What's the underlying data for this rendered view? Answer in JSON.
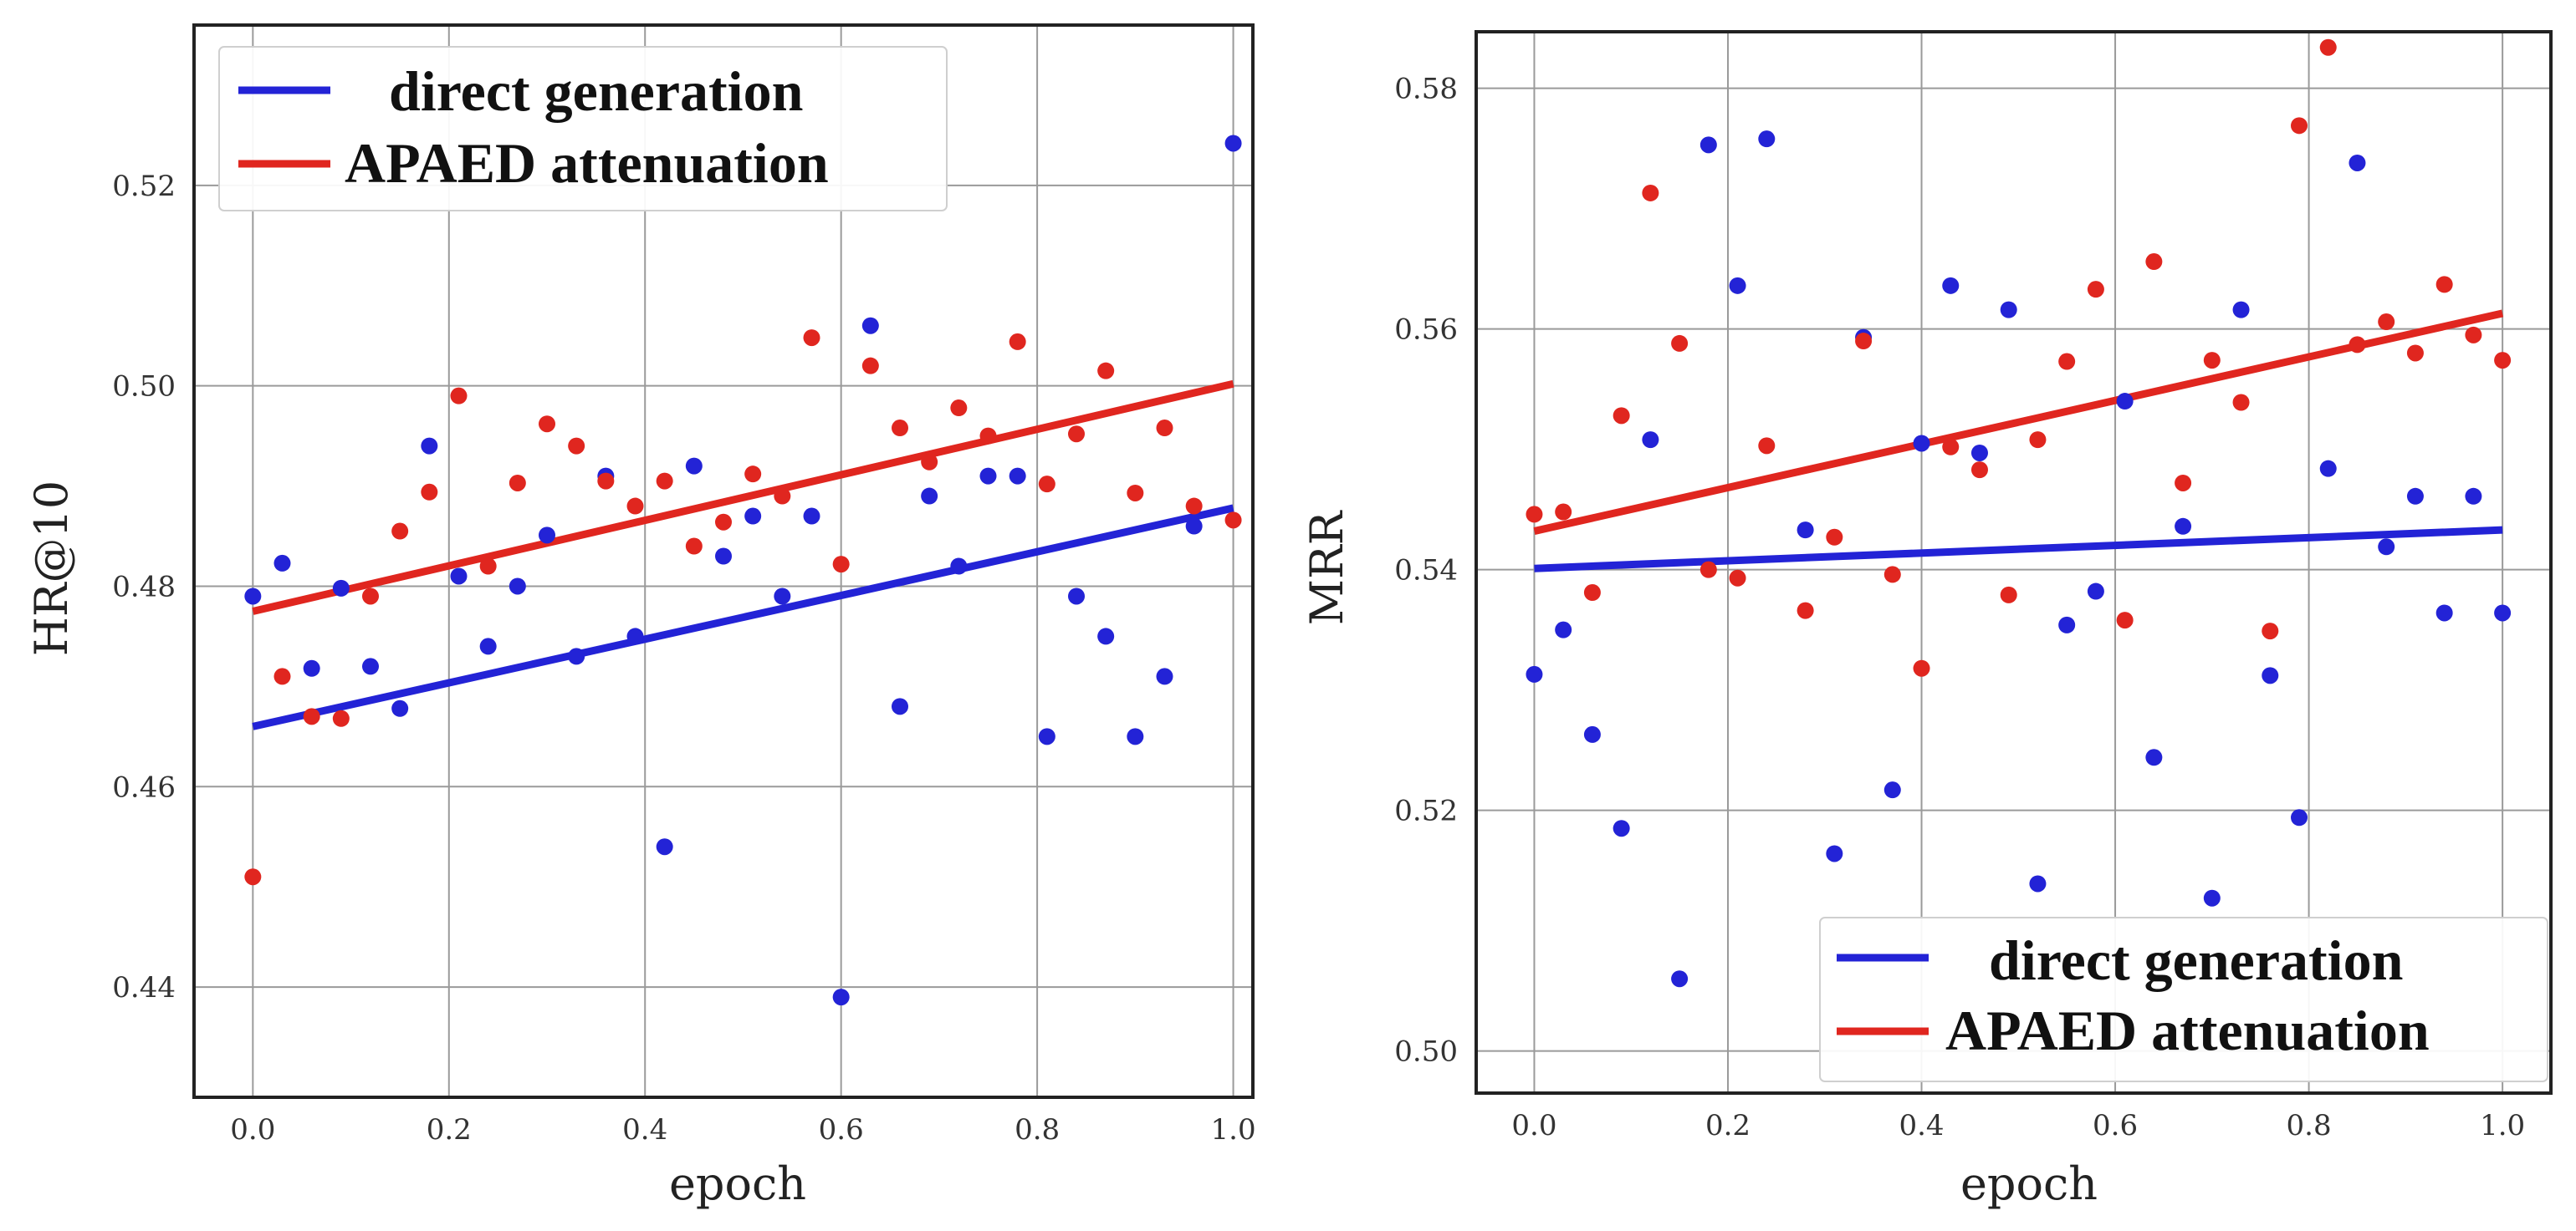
{
  "chart_data": [
    {
      "type": "scatter",
      "xlabel": "epoch",
      "ylabel": "HR@10",
      "xlim": [
        -0.06,
        1.02
      ],
      "ylim": [
        0.429,
        0.536
      ],
      "xticks": [
        0.0,
        0.2,
        0.4,
        0.6,
        0.8,
        1.0
      ],
      "xtick_labels": [
        "0.0",
        "0.2",
        "0.4",
        "0.6",
        "0.8",
        "1.0"
      ],
      "yticks": [
        0.44,
        0.46,
        0.48,
        0.5,
        0.52
      ],
      "ytick_labels": [
        "0.44",
        "0.46",
        "0.48",
        "0.50",
        "0.52"
      ],
      "grid": true,
      "legend_position": "top-left",
      "series": [
        {
          "name": "direct generation",
          "color": "#2323d6",
          "x": [
            0.0,
            0.03,
            0.06,
            0.09,
            0.12,
            0.15,
            0.18,
            0.21,
            0.24,
            0.27,
            0.3,
            0.33,
            0.36,
            0.39,
            0.42,
            0.45,
            0.48,
            0.51,
            0.54,
            0.57,
            0.6,
            0.63,
            0.66,
            0.69,
            0.72,
            0.75,
            0.78,
            0.81,
            0.84,
            0.87,
            0.9,
            0.93,
            0.96,
            1.0
          ],
          "y": [
            0.479,
            0.4823,
            0.4718,
            0.4798,
            0.472,
            0.4678,
            0.494,
            0.481,
            0.474,
            0.48,
            0.4851,
            0.473,
            0.491,
            0.475,
            0.454,
            0.492,
            0.483,
            0.487,
            0.479,
            0.487,
            0.439,
            0.506,
            0.468,
            0.489,
            0.482,
            0.491,
            0.491,
            0.465,
            0.479,
            0.475,
            0.465,
            0.471,
            0.486,
            0.5242
          ],
          "trend": {
            "x": [
              0.0,
              1.0
            ],
            "y": [
              0.466,
              0.4878
            ]
          }
        },
        {
          "name": "APAED attenuation",
          "color": "#e0261f",
          "x": [
            0.0,
            0.03,
            0.06,
            0.09,
            0.12,
            0.15,
            0.18,
            0.21,
            0.24,
            0.27,
            0.3,
            0.33,
            0.36,
            0.39,
            0.42,
            0.45,
            0.48,
            0.51,
            0.54,
            0.57,
            0.6,
            0.63,
            0.66,
            0.69,
            0.72,
            0.75,
            0.78,
            0.81,
            0.84,
            0.87,
            0.9,
            0.93,
            0.96,
            1.0
          ],
          "y": [
            0.451,
            0.471,
            0.467,
            0.4668,
            0.479,
            0.4855,
            0.4894,
            0.499,
            0.482,
            0.4903,
            0.4962,
            0.494,
            0.4905,
            0.488,
            0.4905,
            0.484,
            0.4864,
            0.4912,
            0.489,
            0.5048,
            0.4822,
            0.502,
            0.4958,
            0.4924,
            0.4978,
            0.495,
            0.5044,
            0.4902,
            0.4952,
            0.5015,
            0.4893,
            0.4958,
            0.488,
            0.4866
          ],
          "trend": {
            "x": [
              0.0,
              1.0
            ],
            "y": [
              0.4775,
              0.5002
            ]
          }
        }
      ]
    },
    {
      "type": "scatter",
      "xlabel": "epoch",
      "ylabel": "MRR",
      "xlim": [
        -0.06,
        1.05
      ],
      "ylim": [
        0.4965,
        0.5847
      ],
      "xticks": [
        0.0,
        0.2,
        0.4,
        0.6,
        0.8,
        1.0
      ],
      "xtick_labels": [
        "0.0",
        "0.2",
        "0.4",
        "0.6",
        "0.8",
        "1.0"
      ],
      "yticks": [
        0.5,
        0.52,
        0.54,
        0.56,
        0.58
      ],
      "ytick_labels": [
        "0.50",
        "0.52",
        "0.54",
        "0.56",
        "0.58"
      ],
      "grid": true,
      "legend_position": "bottom-right",
      "series": [
        {
          "name": "direct generation",
          "color": "#2323d6",
          "x": [
            0.0,
            0.03,
            0.06,
            0.09,
            0.12,
            0.15,
            0.18,
            0.21,
            0.24,
            0.28,
            0.31,
            0.34,
            0.37,
            0.4,
            0.43,
            0.46,
            0.49,
            0.52,
            0.55,
            0.58,
            0.61,
            0.64,
            0.67,
            0.7,
            0.73,
            0.76,
            0.79,
            0.82,
            0.85,
            0.88,
            0.91,
            0.94,
            0.97,
            1.0
          ],
          "y": [
            0.5313,
            0.535,
            0.5263,
            0.5185,
            0.5508,
            0.506,
            0.5753,
            0.5636,
            0.5758,
            0.5433,
            0.5164,
            0.5593,
            0.5217,
            0.5505,
            0.5636,
            0.5497,
            0.5616,
            0.5139,
            0.5354,
            0.5382,
            0.554,
            0.5244,
            0.5436,
            0.5127,
            0.5616,
            0.5312,
            0.5194,
            0.5484,
            0.5738,
            0.5419,
            0.5461,
            0.5364,
            0.5461,
            0.5364
          ],
          "trend": {
            "x": [
              0.0,
              1.0
            ],
            "y": [
              0.5401,
              0.5433
            ]
          }
        },
        {
          "name": "APAED attenuation",
          "color": "#e0261f",
          "x": [
            0.0,
            0.03,
            0.06,
            0.09,
            0.12,
            0.15,
            0.18,
            0.21,
            0.24,
            0.28,
            0.31,
            0.34,
            0.37,
            0.4,
            0.43,
            0.46,
            0.49,
            0.52,
            0.55,
            0.58,
            0.61,
            0.64,
            0.67,
            0.7,
            0.73,
            0.76,
            0.79,
            0.82,
            0.85,
            0.88,
            0.91,
            0.94,
            0.97,
            1.0
          ],
          "y": [
            0.5446,
            0.5448,
            0.5381,
            0.5528,
            0.5713,
            0.5588,
            0.54,
            0.5393,
            0.5503,
            0.5366,
            0.5427,
            0.559,
            0.5396,
            0.5318,
            0.5502,
            0.5483,
            0.5379,
            0.5508,
            0.5573,
            0.5633,
            0.5358,
            0.5656,
            0.5472,
            0.5574,
            0.5539,
            0.5349,
            0.5769,
            0.5834,
            0.5587,
            0.5606,
            0.558,
            0.5637,
            0.5595,
            0.5574
          ],
          "trend": {
            "x": [
              0.0,
              1.0
            ],
            "y": [
              0.5432,
              0.5613
            ]
          }
        }
      ]
    }
  ]
}
